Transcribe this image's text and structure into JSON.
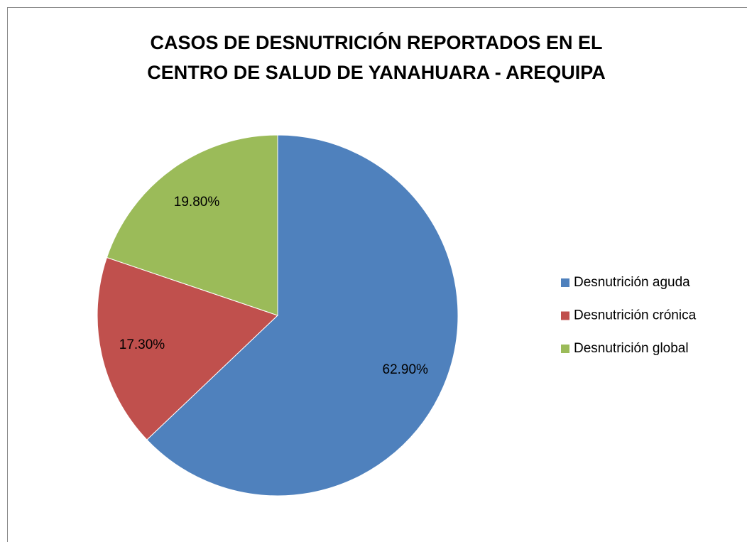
{
  "chart_data": {
    "type": "pie",
    "title": [
      "CASOS DE DESNUTRICIÓN REPORTADOS EN EL",
      "CENTRO DE SALUD DE YANAHUARA - AREQUIPA"
    ],
    "categories": [
      "Desnutrición aguda",
      "Desnutrición crónica",
      "Desnutrición global"
    ],
    "values": [
      62.9,
      17.3,
      19.8
    ],
    "value_labels": [
      "62.90%",
      "17.30%",
      "19.80%"
    ],
    "colors": [
      "#4f81bd",
      "#c0504d",
      "#9bbb59"
    ],
    "legend": "right"
  }
}
